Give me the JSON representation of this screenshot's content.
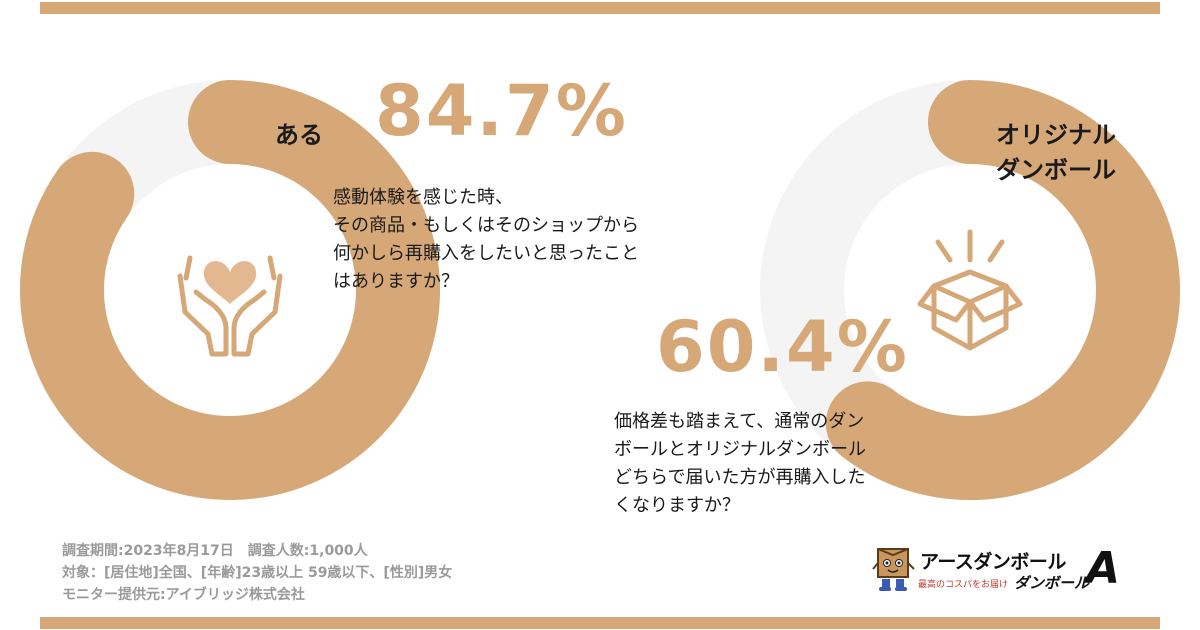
{
  "chart_data": [
    {
      "type": "pie",
      "title": "84.7%",
      "question": "感動体験を感じた時、\nその商品・もしくはそのショップから\n何かしら再購入をしたいと思ったこと\nはありますか？",
      "slices": [
        {
          "label": "ある",
          "value": 84.7,
          "color": "#d6a878"
        },
        {
          "label": "",
          "value": 15.3,
          "color": "#f4f4f4"
        }
      ],
      "percent_label": "84.7%",
      "icon": "hands-heart-icon"
    },
    {
      "type": "pie",
      "title": "60.4%",
      "question": "価格差も踏まえて、通常のダン\nボールとオリジナルダンボール\nどちらで届いた方が再購入した\nくなりますか？",
      "slices": [
        {
          "label": "オリジナル\nダンボール",
          "value": 60.4,
          "color": "#d6a878"
        },
        {
          "label": "",
          "value": 39.6,
          "color": "#f4f4f4"
        }
      ],
      "percent_label": "60.4%",
      "icon": "open-box-icon"
    }
  ],
  "colors": {
    "accent": "#d6a878",
    "track": "#f4f4f4",
    "footer_text": "#9a9a9a"
  },
  "footer": {
    "line1": "調査期間:2023年8月17日　調査人数:1,000人",
    "line2": "対象：[居住地]全国、[年齢]23歳以上 59歳以下、[性別]男女",
    "line3": "モニター提供元:アイブリッジ株式会社"
  },
  "logo": {
    "title": "アースダンボール",
    "tagline": "最高のコスパをお届け",
    "brand2": "ダンボール",
    "letter": "A"
  }
}
